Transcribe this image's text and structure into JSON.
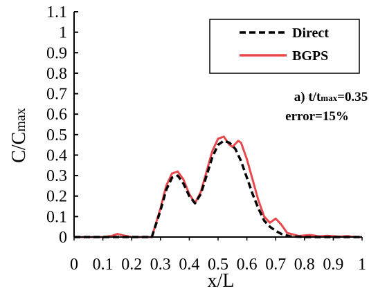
{
  "chart_data": {
    "type": "line",
    "xlabel": "x/L",
    "ylabel_main": "C/C",
    "ylabel_sub": "max",
    "xlim": [
      0,
      1
    ],
    "ylim": [
      0,
      1.1
    ],
    "x_ticks": [
      "0",
      "0.1",
      "0.2",
      "0.3",
      "0.4",
      "0.5",
      "0.6",
      "0.7",
      "0.8",
      "0.9",
      "1"
    ],
    "y_ticks": [
      "0",
      "0.1",
      "0.2",
      "0.3",
      "0.4",
      "0.5",
      "0.6",
      "0.7",
      "0.8",
      "0.9",
      "1",
      "1.1"
    ],
    "legend_position": "top-right",
    "annotation": {
      "line1_prefix": "a) t/t",
      "line1_sub": "max",
      "line1_suffix": "=0.35",
      "line2": "error=15%"
    },
    "series": [
      {
        "name": "Direct",
        "color": "#000000",
        "style": "dashed",
        "x": [
          0.0,
          0.1,
          0.2,
          0.27,
          0.3,
          0.32,
          0.34,
          0.36,
          0.38,
          0.4,
          0.42,
          0.44,
          0.46,
          0.48,
          0.5,
          0.52,
          0.54,
          0.56,
          0.58,
          0.6,
          0.62,
          0.64,
          0.66,
          0.68,
          0.7,
          0.72,
          0.75,
          0.8,
          0.9,
          1.0
        ],
        "y": [
          0.0,
          0.0,
          0.0,
          0.0,
          0.13,
          0.23,
          0.29,
          0.3,
          0.26,
          0.2,
          0.165,
          0.21,
          0.3,
          0.39,
          0.45,
          0.47,
          0.46,
          0.43,
          0.37,
          0.29,
          0.21,
          0.14,
          0.08,
          0.05,
          0.03,
          0.015,
          0.003,
          0.0,
          0.0,
          0.0
        ]
      },
      {
        "name": "BGPS",
        "color": "#e8474c",
        "style": "solid",
        "x": [
          0.0,
          0.1,
          0.13,
          0.15,
          0.17,
          0.2,
          0.27,
          0.3,
          0.32,
          0.34,
          0.36,
          0.38,
          0.4,
          0.42,
          0.44,
          0.46,
          0.48,
          0.5,
          0.52,
          0.54,
          0.55,
          0.57,
          0.58,
          0.6,
          0.62,
          0.64,
          0.66,
          0.68,
          0.7,
          0.72,
          0.74,
          0.78,
          0.82,
          0.85,
          0.88,
          0.92,
          0.95,
          0.98,
          1.0
        ],
        "y": [
          0.0,
          0.0,
          0.005,
          0.015,
          0.008,
          0.0,
          0.0,
          0.14,
          0.25,
          0.31,
          0.32,
          0.28,
          0.21,
          0.165,
          0.22,
          0.32,
          0.42,
          0.48,
          0.49,
          0.45,
          0.44,
          0.47,
          0.46,
          0.38,
          0.28,
          0.18,
          0.1,
          0.07,
          0.09,
          0.06,
          0.02,
          0.005,
          0.01,
          0.003,
          0.006,
          0.002,
          0.004,
          0.0,
          0.0
        ]
      }
    ]
  }
}
